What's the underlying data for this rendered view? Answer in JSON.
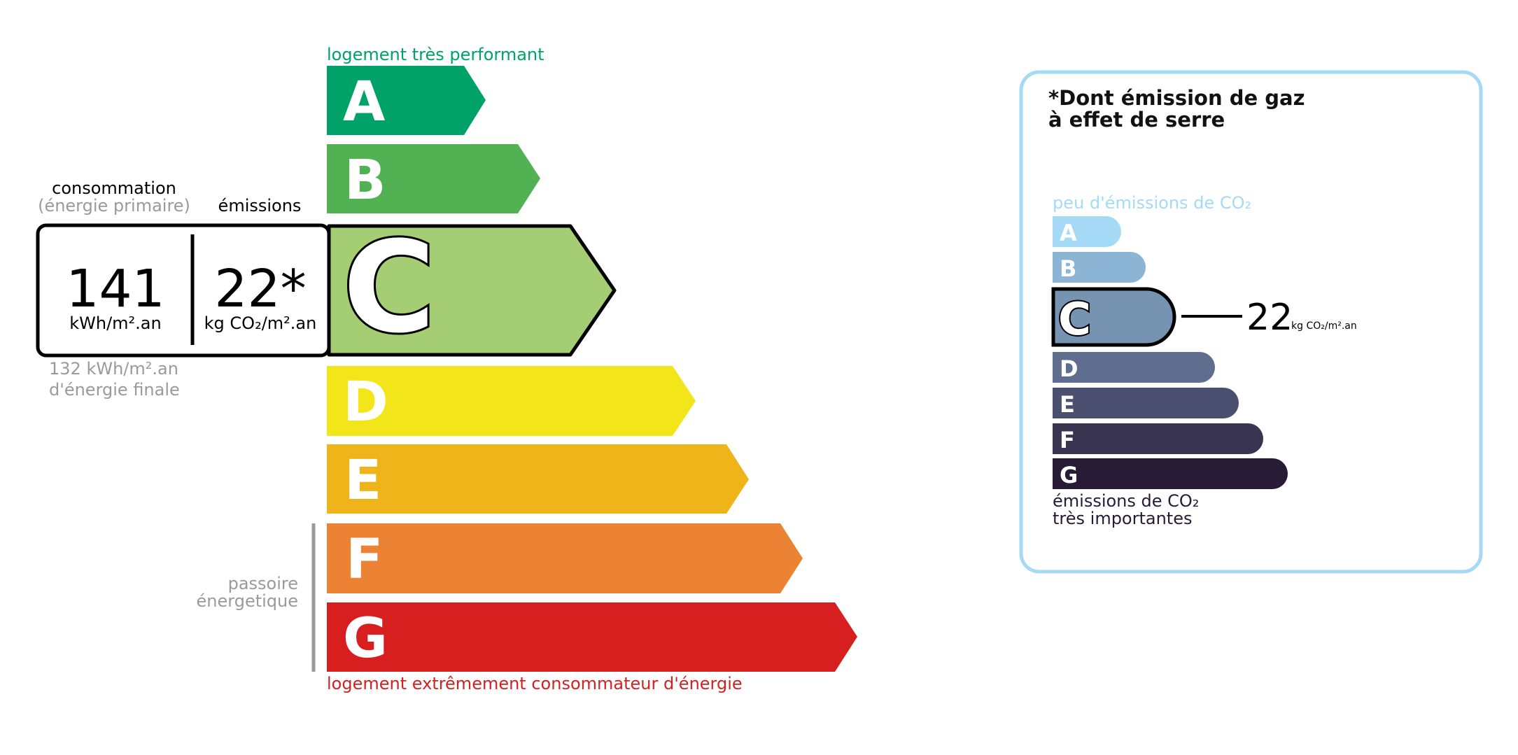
{
  "energy": {
    "top_label": "logement très performant",
    "bottom_label": "logement extrêmement consommateur d'énergie",
    "consumption_header_1": "consommation",
    "consumption_header_2": "(énergie primaire)",
    "emissions_header": "émissions",
    "consumption_value": "141",
    "consumption_unit": "kWh/m².an",
    "emissions_value": "22*",
    "emissions_unit": "kg CO₂/m².an",
    "final_energy_1": "132 kWh/m².an",
    "final_energy_2": "d'énergie finale",
    "passoire_1": "passoire",
    "passoire_2": "énergetique",
    "current_class": "C",
    "classes": [
      {
        "letter": "A",
        "color": "#00a26a"
      },
      {
        "letter": "B",
        "color": "#52b153"
      },
      {
        "letter": "C",
        "color": "#a5cd74"
      },
      {
        "letter": "D",
        "color": "#f2e61a"
      },
      {
        "letter": "E",
        "color": "#efb419"
      },
      {
        "letter": "F",
        "color": "#eb8234"
      },
      {
        "letter": "G",
        "color": "#d71f20"
      }
    ],
    "top_label_color": "#00a26a",
    "bottom_label_color": "#d71f20"
  },
  "ges": {
    "title_1": "*Dont émission de gaz",
    "title_2": "à effet de serre",
    "top_label": "peu d'émissions de CO₂",
    "bottom_label_1": "émissions de CO₂",
    "bottom_label_2": "très importantes",
    "value": "22",
    "unit": "kg CO₂/m².an",
    "current_class": "C",
    "border_color": "#a4daf6",
    "classes": [
      {
        "letter": "A",
        "color": "#a4daf6"
      },
      {
        "letter": "B",
        "color": "#8cb4d4"
      },
      {
        "letter": "C",
        "color": "#7793b2"
      },
      {
        "letter": "D",
        "color": "#5f6e8f"
      },
      {
        "letter": "E",
        "color": "#4c5070"
      },
      {
        "letter": "F",
        "color": "#393551"
      },
      {
        "letter": "G",
        "color": "#281b35"
      }
    ]
  }
}
